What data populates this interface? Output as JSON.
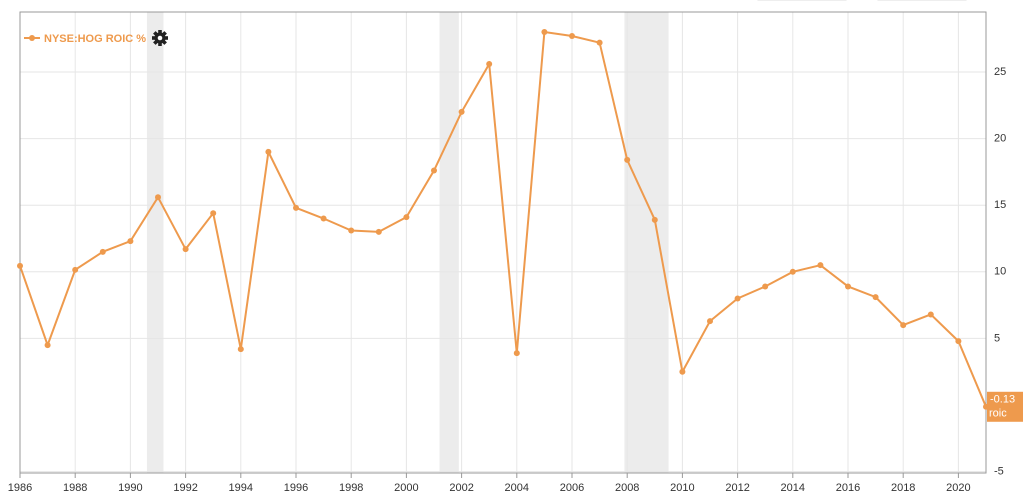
{
  "chart_data": {
    "type": "line",
    "x": [
      1986,
      1987,
      1988,
      1989,
      1990,
      1991,
      1992,
      1993,
      1994,
      1995,
      1996,
      1997,
      1998,
      1999,
      2000,
      2001,
      2002,
      2003,
      2004,
      2005,
      2006,
      2007,
      2008,
      2009,
      2010,
      2011,
      2012,
      2013,
      2014,
      2015,
      2016,
      2017,
      2018,
      2019,
      2020,
      2021
    ],
    "series": [
      {
        "name": "NYSE:HOG ROIC %",
        "color": "#ee9a4d",
        "values": [
          10.45,
          4.5,
          10.15,
          11.5,
          12.3,
          15.6,
          11.7,
          14.4,
          4.2,
          19.0,
          14.8,
          14.0,
          13.1,
          13.0,
          14.1,
          17.6,
          22.0,
          25.6,
          3.9,
          28.0,
          27.7,
          27.2,
          18.4,
          13.9,
          2.5,
          6.3,
          8.0,
          8.9,
          10.0,
          10.5,
          8.9,
          8.1,
          6.0,
          6.8,
          4.8,
          -0.13
        ]
      }
    ],
    "end_label": {
      "value": "-0.13",
      "name": "roic"
    },
    "shaded_periods": [
      [
        1990.6,
        1991.2
      ],
      [
        2001.2,
        2001.9
      ],
      [
        2007.9,
        2009.5
      ]
    ],
    "xlim": [
      1986,
      2021
    ],
    "xticks": [
      1986,
      1988,
      1990,
      1992,
      1994,
      1996,
      1998,
      2000,
      2002,
      2004,
      2006,
      2008,
      2010,
      2012,
      2014,
      2016,
      2018,
      2020
    ],
    "ylim": [
      -5.1,
      29.5
    ],
    "yticks": [
      -5,
      5,
      10,
      15,
      20,
      25
    ],
    "grid": true
  }
}
